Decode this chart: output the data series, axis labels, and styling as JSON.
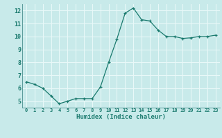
{
  "x": [
    0,
    1,
    2,
    3,
    4,
    5,
    6,
    7,
    8,
    9,
    10,
    11,
    12,
    13,
    14,
    15,
    16,
    17,
    18,
    19,
    20,
    21,
    22,
    23
  ],
  "y": [
    6.5,
    6.3,
    6.0,
    5.4,
    4.8,
    5.0,
    5.2,
    5.2,
    5.2,
    6.1,
    8.0,
    9.8,
    11.8,
    12.2,
    11.3,
    11.2,
    10.5,
    10.0,
    10.0,
    9.85,
    9.9,
    10.0,
    10.0,
    10.1
  ],
  "xlabel": "Humidex (Indice chaleur)",
  "ylim": [
    4.5,
    12.5
  ],
  "xlim": [
    -0.5,
    23.5
  ],
  "yticks": [
    5,
    6,
    7,
    8,
    9,
    10,
    11,
    12
  ],
  "xticks": [
    0,
    1,
    2,
    3,
    4,
    5,
    6,
    7,
    8,
    9,
    10,
    11,
    12,
    13,
    14,
    15,
    16,
    17,
    18,
    19,
    20,
    21,
    22,
    23
  ],
  "line_color": "#1a7a6e",
  "marker": "+",
  "bg_color": "#c8eaea",
  "grid_color": "#e8f8f8",
  "tick_label_color": "#1a7a6e",
  "xlabel_color": "#1a7a6e",
  "spine_color": "#5a9a9a"
}
